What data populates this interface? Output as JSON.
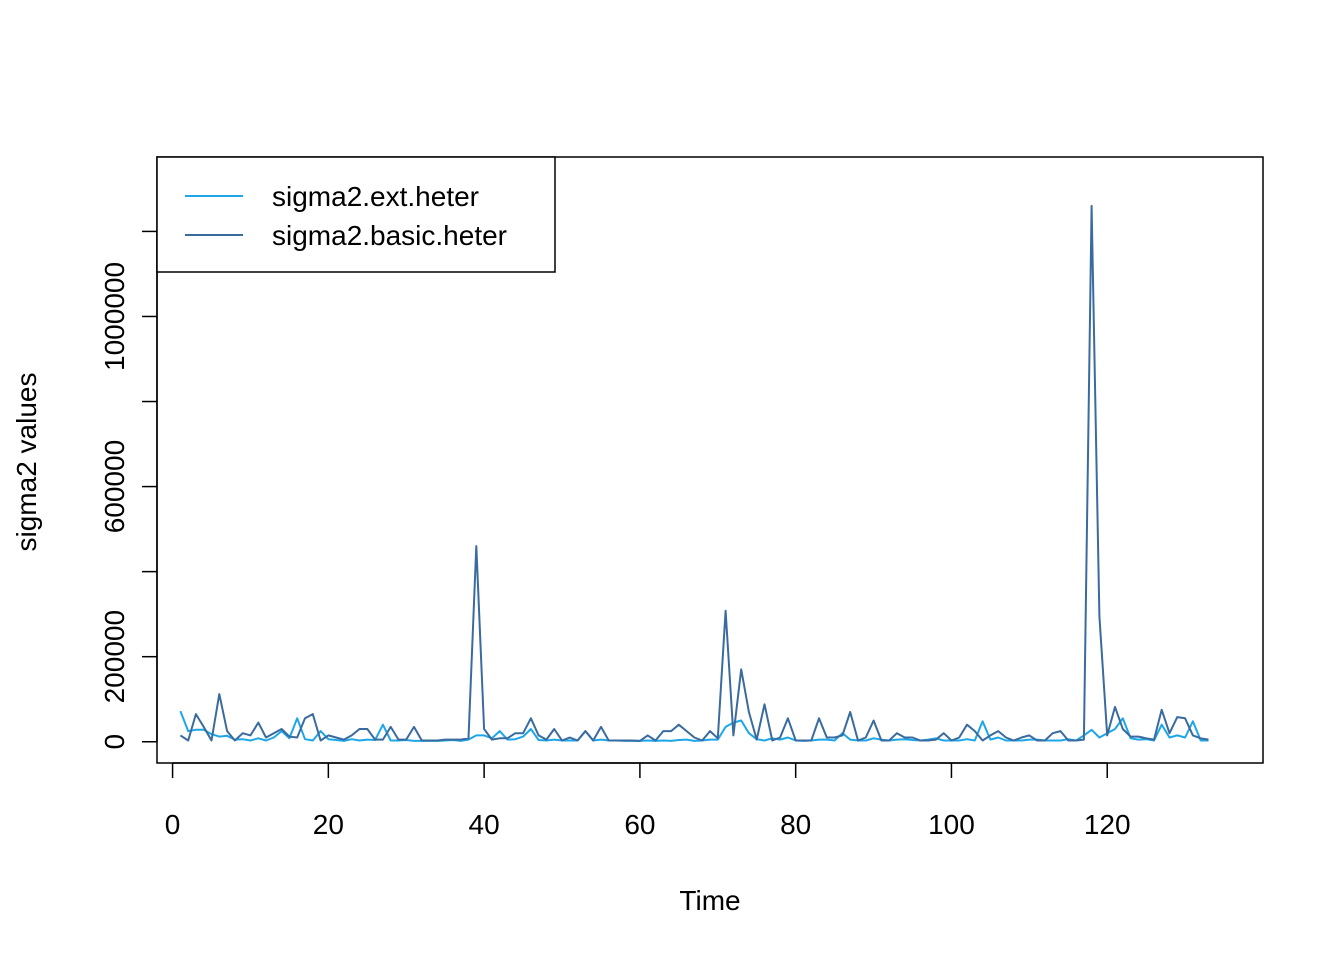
{
  "chart_data": {
    "type": "line",
    "title": "",
    "xlabel": "Time",
    "ylabel": "sigma2 values",
    "xlim": [
      -2,
      140
    ],
    "ylim": [
      -50000,
      1375000
    ],
    "x_ticks": [
      0,
      20,
      40,
      60,
      80,
      100,
      120
    ],
    "y_ticks": [
      0,
      200000,
      600000,
      1000000
    ],
    "y_minor_ticks": [
      400000,
      800000,
      1200000
    ],
    "legend_position": "top-left",
    "x": [
      1,
      2,
      3,
      4,
      5,
      6,
      7,
      8,
      9,
      10,
      11,
      12,
      13,
      14,
      15,
      16,
      17,
      18,
      19,
      20,
      21,
      22,
      23,
      24,
      25,
      26,
      27,
      28,
      29,
      30,
      31,
      32,
      33,
      34,
      35,
      36,
      37,
      38,
      39,
      40,
      41,
      42,
      43,
      44,
      45,
      46,
      47,
      48,
      49,
      50,
      51,
      52,
      53,
      54,
      55,
      56,
      57,
      58,
      59,
      60,
      61,
      62,
      63,
      64,
      65,
      66,
      67,
      68,
      69,
      70,
      71,
      72,
      73,
      74,
      75,
      76,
      77,
      78,
      79,
      80,
      81,
      82,
      83,
      84,
      85,
      86,
      87,
      88,
      89,
      90,
      91,
      92,
      93,
      94,
      95,
      96,
      97,
      98,
      99,
      100,
      101,
      102,
      103,
      104,
      105,
      106,
      107,
      108,
      109,
      110,
      111,
      112,
      113,
      114,
      115,
      116,
      117,
      118,
      119,
      120,
      121,
      122,
      123,
      124,
      125,
      126,
      127,
      128,
      129,
      130,
      131,
      132,
      133
    ],
    "series": [
      {
        "name": "sigma2.ext.heter",
        "color": "#1ea7e8",
        "values": [
          72000,
          25000,
          28000,
          28000,
          18000,
          12000,
          14000,
          5000,
          6000,
          3000,
          8000,
          3000,
          10000,
          25000,
          8000,
          55000,
          6000,
          3000,
          25000,
          6000,
          4000,
          2000,
          6000,
          3000,
          5000,
          4000,
          40000,
          3000,
          3000,
          4000,
          2000,
          2000,
          2000,
          2000,
          3000,
          4000,
          2000,
          5000,
          15000,
          15000,
          8000,
          25000,
          5000,
          6000,
          12000,
          30000,
          4000,
          3000,
          5000,
          3000,
          3000,
          3000,
          25000,
          3000,
          5000,
          3000,
          3000,
          2000,
          2000,
          2000,
          3000,
          2000,
          3000,
          2000,
          4000,
          5000,
          2000,
          3000,
          5000,
          5000,
          35000,
          45000,
          50000,
          20000,
          6000,
          3000,
          8000,
          5000,
          10000,
          3000,
          2000,
          3000,
          5000,
          5000,
          3000,
          20000,
          5000,
          3000,
          3000,
          8000,
          5000,
          3000,
          5000,
          6000,
          4000,
          3000,
          5000,
          8000,
          3000,
          3000,
          3000,
          6000,
          3000,
          48000,
          5000,
          10000,
          3000,
          3000,
          3000,
          5000,
          5000,
          3000,
          3000,
          3000,
          6000,
          3000,
          15000,
          28000,
          10000,
          20000,
          30000,
          55000,
          8000,
          5000,
          6000,
          3000,
          40000,
          10000,
          15000,
          10000,
          48000,
          3000,
          3000
        ]
      },
      {
        "name": "sigma2.basic.heter",
        "color": "#3a6b9f",
        "values": [
          15000,
          3000,
          65000,
          35000,
          3000,
          112000,
          25000,
          3000,
          20000,
          15000,
          45000,
          10000,
          20000,
          30000,
          12000,
          10000,
          55000,
          65000,
          3000,
          15000,
          10000,
          5000,
          15000,
          30000,
          30000,
          5000,
          5000,
          35000,
          5000,
          5000,
          35000,
          3000,
          3000,
          3000,
          5000,
          5000,
          5000,
          8000,
          460000,
          30000,
          5000,
          8000,
          8000,
          20000,
          20000,
          55000,
          15000,
          5000,
          30000,
          3000,
          10000,
          3000,
          25000,
          3000,
          35000,
          3000,
          3000,
          3000,
          3000,
          2000,
          15000,
          3000,
          25000,
          25000,
          40000,
          25000,
          10000,
          3000,
          25000,
          8000,
          308000,
          15000,
          170000,
          70000,
          5000,
          88000,
          3000,
          10000,
          55000,
          3000,
          3000,
          3000,
          55000,
          10000,
          10000,
          15000,
          70000,
          3000,
          10000,
          50000,
          3000,
          3000,
          20000,
          10000,
          10000,
          3000,
          3000,
          5000,
          20000,
          3000,
          10000,
          40000,
          25000,
          3000,
          15000,
          25000,
          10000,
          3000,
          10000,
          15000,
          3000,
          3000,
          20000,
          25000,
          3000,
          3000,
          5000,
          1260000,
          295000,
          15000,
          82000,
          30000,
          12000,
          12000,
          8000,
          5000,
          75000,
          20000,
          58000,
          55000,
          15000,
          8000,
          5000
        ]
      }
    ]
  }
}
